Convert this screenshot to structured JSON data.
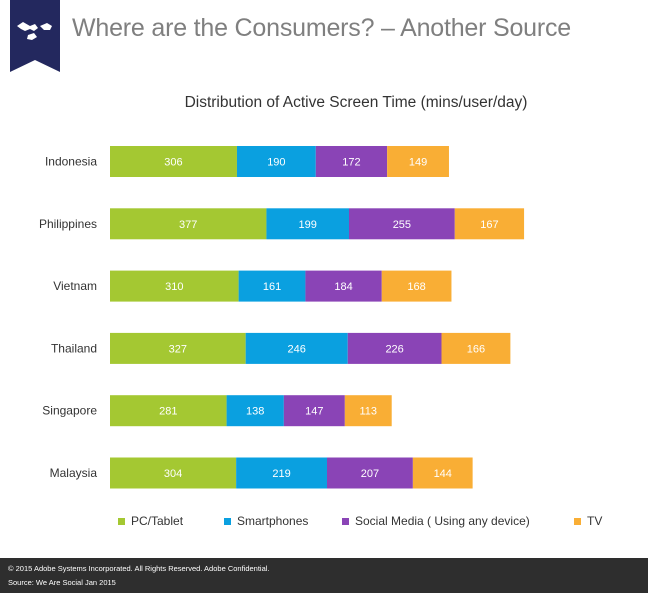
{
  "header": {
    "title": "Where are the Consumers? – Another Source"
  },
  "colors": {
    "pc_tablet": "#a4c832",
    "smartphones": "#0aa0e0",
    "social_media": "#8a44b6",
    "tv": "#f9ae35",
    "title_text": "#7f7f7f",
    "badge": "#23285e",
    "footer_bg": "#2e2e2e"
  },
  "chart_data": {
    "type": "bar",
    "orientation": "horizontal",
    "stacked": true,
    "title": "Distribution  of Active Screen Time (mins/user/day)",
    "categories": [
      "Indonesia",
      "Philippines",
      "Vietnam",
      "Thailand",
      "Singapore",
      "Malaysia"
    ],
    "series": [
      {
        "name": "PC/Tablet",
        "color": "#a4c832",
        "values": [
          306,
          377,
          310,
          327,
          281,
          304
        ]
      },
      {
        "name": "Smartphones",
        "color": "#0aa0e0",
        "values": [
          190,
          199,
          161,
          246,
          138,
          219
        ]
      },
      {
        "name": "Social Media ( Using any device)",
        "color": "#8a44b6",
        "values": [
          172,
          255,
          184,
          226,
          147,
          207
        ]
      },
      {
        "name": "TV",
        "color": "#f9ae35",
        "values": [
          149,
          167,
          168,
          166,
          113,
          144
        ]
      }
    ],
    "grid": false,
    "axis_visible": false,
    "legend_position": "bottom",
    "data_labels": true
  },
  "legend": [
    {
      "label": "PC/Tablet",
      "color": "#a4c832"
    },
    {
      "label": "Smartphones",
      "color": "#0aa0e0"
    },
    {
      "label": "Social Media ( Using any device)",
      "color": "#8a44b6"
    },
    {
      "label": "TV",
      "color": "#f9ae35"
    }
  ],
  "footer": {
    "copyright": "© 2015 Adobe Systems Incorporated.  All Rights Reserved.  Adobe Confidential.",
    "source": "Source: We Are Social Jan 2015"
  }
}
